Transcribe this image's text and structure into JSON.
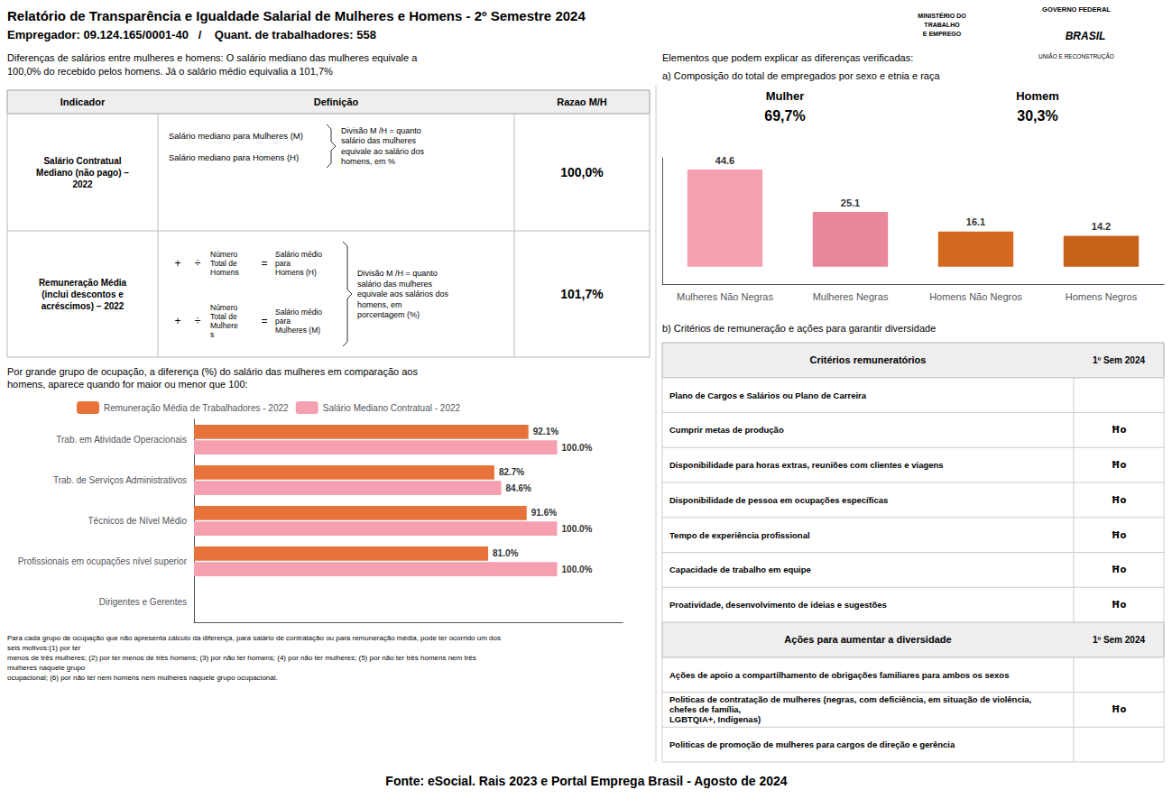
{
  "chart_data": [
    {
      "type": "bar",
      "title": "a) Composição do total de empregados por sexo e etnia e raça",
      "categories": [
        "Mulheres Não Negras",
        "Mulheres Negras",
        "Homens Não Negros",
        "Homens Negros"
      ],
      "values": [
        44.6,
        25.1,
        16.1,
        14.2
      ],
      "colors": [
        "#F4A0B0",
        "#E8869A",
        "#D2691E",
        "#C8611A"
      ],
      "ylim": [
        -8,
        50
      ],
      "data_labels": true,
      "tick_labels": "x",
      "annotations": [
        [
          "Relatório de Transparência e Igualdade Salarial de Mulheres e Homens - 2º Semestre 2024",
          "Empregador: 09.124.165/0001-40   /    Quant. de trabalhadores: 558"
        ],
        [
          "MINISTÉRIO DO",
          "TRABALHO",
          "E EMPREGO",
          "GOVERNO FEDERAL",
          "BRASIL",
          "UNIÃO E RECONSTRUÇÃO"
        ],
        [
          "Diferenças de salários entre mulheres e homens: O salário mediano das mulheres equivale a",
          "100,0% do recebido pelos homens. Já o salário médio equivalia a 101,7%",
          "Elementos que podem explicar as diferenças verificadas:"
        ],
        [
          "Indicador",
          "Definição",
          "Razao M/H"
        ],
        [
          "Salário Contratual\nMediano (não pago) –\n2022",
          "Salário mediano para Mulheres (M)",
          "Salário mediano para Homens (H)",
          "Divisão M /H = quanto\nsalário das mulheres\nequivale ao salário dos\nhomens, em %",
          "100,0%"
        ],
        [
          "Remuneração Média\n(inclui descontos e\nacréscimos) – 2022",
          "+",
          "÷",
          "Número\nTotal de\nHomens",
          "=",
          "Salário médio\npara\nHomens (H)",
          "+",
          "÷",
          "Número\nTotal de\nMulhere\ns",
          "=",
          "Salário médio\npara\nMulheres (M)",
          "Divisão M /H = quanto\nsalário das mulheres\nequivale aos salários dos\nhomens, em\nporcentagem (%)",
          "101,7%"
        ],
        [
          "Mulher",
          "Homem",
          "69,7%",
          "30,3%"
        ],
        [
          "b) Critérios de remuneração e ações para garantir diversidade"
        ],
        [
          "Critérios remuneratórios",
          "1º Sem 2024",
          [
            [
              "Plano de Cargos e Salários ou Plano de Carreira",
              null
            ],
            [
              "Cumprir metas de produção",
              "Ħo"
            ],
            [
              "Disponibilidade para horas extras, reuniões com clientes e viagens",
              "Ħo"
            ],
            [
              "Disponibilidade de pessoa em ocupações específicas",
              "Ħo"
            ],
            [
              "Tempo de experiência profissional",
              "Ħo"
            ],
            [
              "Capacidade de trabalho em equipe",
              "Ħo"
            ],
            [
              "Proatividade, desenvolvimento de ideias e sugestões",
              "Ħo"
            ]
          ]
        ],
        [
          "Ações para aumentar a diversidade",
          "1º Sem 2024",
          [
            [
              "Ações de apoio a compartilhamento de obrigações familiares para ambos os sexos",
              null
            ],
            [
              "Politicas de contratação de mulheres (negras, com deficiência, em situação de violência, chefes de família,\nLGBTQIA+, Indígenas)",
              "Ħo"
            ],
            [
              "Politicas de promoção de mulheres para cargos de direção e gerência",
              null
            ]
          ]
        ],
        [
          "Para cada grupo de ocupação que não apresenta cálculo da diferença, para salário de contratação ou para remuneração média, pode ter ocorrido um dos seis motivos:(1) por ter\nmenos de três mulheres; (2) por ter menos de três homens; (3) por não ter homens; (4) por não ter mulheres; (5) por não ter três homens nem três mulheres naquele grupo\nocupacional; (6) por não ter nem homens nem mulheres naquele grupo ocupacional."
        ],
        [
          "Fonte: eSocial. Rais 2023 e Portal Emprega Brasil - Agosto de 2024"
        ]
      ]
    },
    {
      "type": "bar",
      "orientation": "horizontal",
      "title": "Por grande grupo de ocupação, a diferença (%) do salário das mulheres em comparação aos\nhomens, aparece quando for maior ou menor que 100:",
      "categories": [
        "Dirigentes e Gerentes",
        "Profissionais em ocupações nível superior",
        "Técnicos de Nível Médio",
        "Trab. de Serviços Administrativos",
        "Trab. em Atividade Operacionais"
      ],
      "series": [
        {
          "name": "Remuneração Média de Trabalhadores - 2022",
          "color": "#E8733A",
          "values": [
            null,
            81.0,
            91.6,
            82.7,
            92.1
          ],
          "value_labels": [
            null,
            "81.0%",
            "91.6%",
            "82.7%",
            "92.1%"
          ]
        },
        {
          "name": "Salário Mediano Contratual - 2022",
          "color": "#F4A0B0",
          "values": [
            null,
            100.0,
            100.0,
            84.6,
            100.0
          ],
          "value_labels": [
            null,
            "100.0%",
            "100.0%",
            "84.6%",
            "100.0%"
          ]
        }
      ],
      "xlim": [
        0,
        118
      ],
      "legend": "upper left",
      "data_labels": true,
      "tick_labels": "y"
    }
  ]
}
